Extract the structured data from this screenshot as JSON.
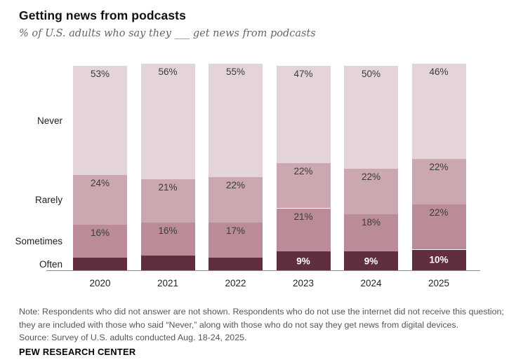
{
  "header": {
    "title": "Getting news from podcasts",
    "subtitle": "% of U.S. adults who say they ___ get news from podcasts"
  },
  "chart_data": {
    "type": "bar",
    "stacked": true,
    "orientation": "vertical",
    "unit": "percent",
    "grid": false,
    "legend_position": "left-row-labels",
    "categories": [
      "2020",
      "2021",
      "2022",
      "2023",
      "2024",
      "2025"
    ],
    "series": [
      {
        "name": "Never",
        "color": "#e4d4d9",
        "values": [
          53,
          56,
          55,
          47,
          50,
          46
        ],
        "labels": [
          "53%",
          "56%",
          "55%",
          "47%",
          "50%",
          "46%"
        ],
        "label_style": "dark-top"
      },
      {
        "name": "Rarely",
        "color": "#cba7b0",
        "values": [
          24,
          21,
          22,
          22,
          22,
          22
        ],
        "labels": [
          "24%",
          "21%",
          "22%",
          "22%",
          "22%",
          "22%"
        ],
        "label_style": "dark-top"
      },
      {
        "name": "Sometimes",
        "color": "#bb8b97",
        "values": [
          16,
          16,
          17,
          21,
          18,
          22
        ],
        "labels": [
          "16%",
          "16%",
          "17%",
          "21%",
          "18%",
          "22%"
        ],
        "label_style": "dark-top"
      },
      {
        "name": "Often",
        "color": "#612e3f",
        "values": [
          6,
          7,
          6,
          9,
          9,
          10
        ],
        "labels": [
          "",
          "",
          "",
          "9%",
          "9%",
          "10%"
        ],
        "label_style": "white-center"
      }
    ]
  },
  "notes": {
    "lines": [
      "Note: Respondents who did not answer are not shown. Respondents who do not use the internet did not receive this question;",
      "they are included with those who said “Never,” along with those who do not say they get news from digital devices.",
      "Source: Survey of U.S. adults conducted Aug. 18-24, 2025."
    ]
  },
  "footer": {
    "brand": "PEW RESEARCH CENTER"
  }
}
